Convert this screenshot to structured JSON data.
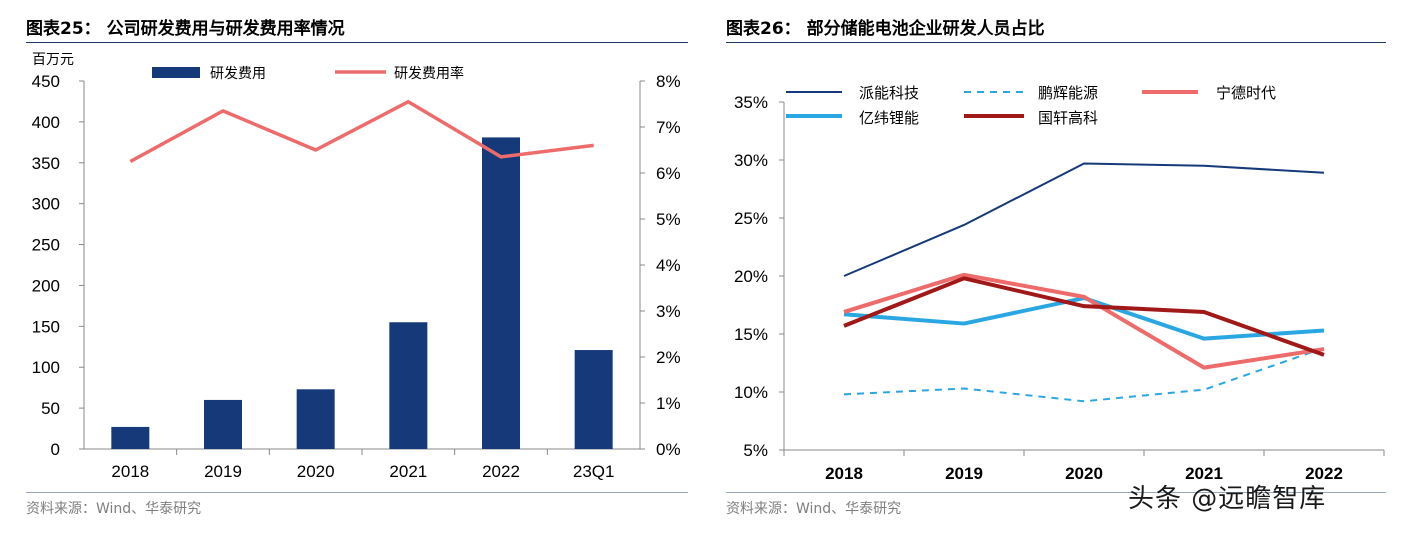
{
  "colors": {
    "bar": "#16397a",
    "red_line": "#ee6b6b",
    "paineng": "#16397a",
    "penghui": "#2aa7e2",
    "catl": "#ee6b6b",
    "eve": "#2aa7e2",
    "gotion": "#a01818",
    "axis": "#888888",
    "rule": "#1f3864"
  },
  "left": {
    "title": "图表25： 公司研发费用与研发费用率情况",
    "source": "资料来源：Wind、华泰研究"
  },
  "right": {
    "title": "图表26： 部分储能电池企业研发人员占比",
    "source": "资料来源：Wind、华泰研究"
  },
  "watermark": "头条 @远瞻智库",
  "chart_data": [
    {
      "type": "bar+line",
      "title": "公司研发费用与研发费用率情况",
      "categories": [
        "2018",
        "2019",
        "2020",
        "2021",
        "2022",
        "23Q1"
      ],
      "ylabel": "百万元",
      "ylim": [
        0,
        450
      ],
      "y_ticks": [
        "0",
        "50",
        "100",
        "150",
        "200",
        "250",
        "300",
        "350",
        "400",
        "450"
      ],
      "y2lim": [
        0,
        8
      ],
      "y2_ticks": [
        "0%",
        "1%",
        "2%",
        "3%",
        "4%",
        "5%",
        "6%",
        "7%",
        "8%"
      ],
      "legend": [
        "研发费用",
        "研发费用率"
      ],
      "series": [
        {
          "name": "研发费用",
          "kind": "bar",
          "axis": "left",
          "values": [
            27,
            60,
            73,
            155,
            381,
            121
          ]
        },
        {
          "name": "研发费用率",
          "kind": "line",
          "axis": "right",
          "values": [
            6.25,
            7.35,
            6.5,
            7.55,
            6.35,
            6.6
          ]
        }
      ]
    },
    {
      "type": "line",
      "title": "部分储能电池企业研发人员占比",
      "categories": [
        "2018",
        "2019",
        "2020",
        "2021",
        "2022"
      ],
      "ylim": [
        5,
        35
      ],
      "y_ticks": [
        "5%",
        "10%",
        "15%",
        "20%",
        "25%",
        "30%",
        "35%"
      ],
      "legend": [
        "派能科技",
        "鹏辉能源",
        "宁德时代",
        "亿纬锂能",
        "国轩高科"
      ],
      "series": [
        {
          "name": "派能科技",
          "values": [
            20.0,
            24.4,
            29.7,
            29.5,
            28.9
          ]
        },
        {
          "name": "鹏辉能源",
          "values": [
            9.8,
            10.3,
            9.2,
            10.2,
            13.8
          ]
        },
        {
          "name": "宁德时代",
          "values": [
            16.9,
            20.1,
            18.2,
            12.1,
            13.7
          ]
        },
        {
          "name": "亿纬锂能",
          "values": [
            16.7,
            15.9,
            18.1,
            14.6,
            15.3
          ]
        },
        {
          "name": "国轩高科",
          "values": [
            15.7,
            19.8,
            17.4,
            16.9,
            13.2
          ]
        }
      ]
    }
  ]
}
